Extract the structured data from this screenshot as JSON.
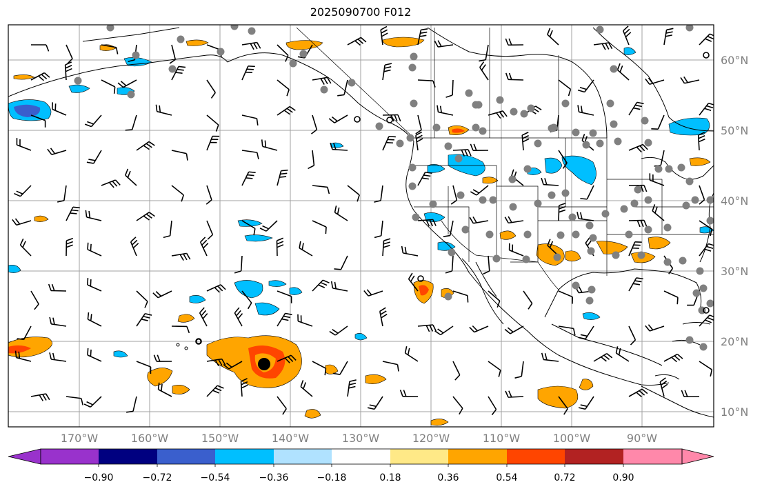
{
  "title": "2025090700 F012",
  "map": {
    "lon_labels": [
      "170°W",
      "160°W",
      "150°W",
      "140°W",
      "130°W",
      "120°W",
      "110°W",
      "100°W",
      "90°W"
    ],
    "lat_labels": [
      "60°N",
      "50°N",
      "40°N",
      "30°N",
      "20°N",
      "10°N"
    ],
    "grid_lines": true
  },
  "colorbar": {
    "tick_labels": [
      "−0.90",
      "−0.72",
      "−0.54",
      "−0.36",
      "−0.18",
      "0.18",
      "0.36",
      "0.54",
      "0.72",
      "0.90"
    ],
    "colors": [
      "#9932CC",
      "#000080",
      "#3A5FCD",
      "#00BFFF",
      "#B0E2FF",
      "#FFFFFF",
      "#FFE987",
      "#FFA500",
      "#FF4500",
      "#B22222",
      "#FF88AA"
    ],
    "extend": "both"
  },
  "markers": {
    "gray_station_color": "#808080",
    "storm_center_icon": "black-dot-icon"
  }
}
